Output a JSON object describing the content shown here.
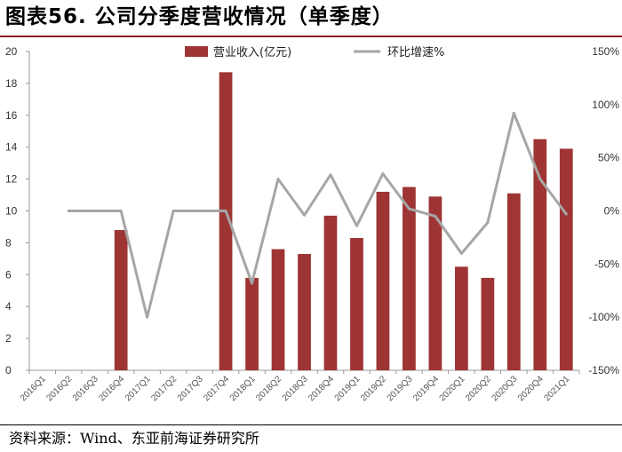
{
  "header": {
    "title": "图表56. 公司分季度营收情况（单季度）"
  },
  "footer": {
    "source": "资料来源：Wind、东亚前海证券研究所"
  },
  "chart_data": {
    "type": "bar",
    "categories": [
      "2016Q1",
      "2016Q2",
      "2016Q3",
      "2016Q4",
      "2017Q1",
      "2017Q2",
      "2017Q3",
      "2017Q4",
      "2018Q1",
      "2018Q2",
      "2018Q3",
      "2018Q4",
      "2019Q1",
      "2019Q2",
      "2019Q3",
      "2019Q4",
      "2020Q1",
      "2020Q2",
      "2020Q3",
      "2020Q4",
      "2021Q1"
    ],
    "series": [
      {
        "name": "营业收入(亿元)",
        "type": "bar",
        "axis": "left",
        "color": "#9e3434",
        "values": [
          null,
          null,
          null,
          8.8,
          null,
          null,
          null,
          18.7,
          5.8,
          7.6,
          7.3,
          9.7,
          8.3,
          11.2,
          11.5,
          10.9,
          6.5,
          5.8,
          11.1,
          14.5,
          13.9
        ]
      },
      {
        "name": "环比增速%",
        "type": "line",
        "axis": "right",
        "color": "#a6a6a6",
        "values": [
          null,
          0,
          0,
          0,
          -100,
          0,
          0,
          0,
          -68,
          30,
          -4,
          34,
          -14,
          35,
          2,
          -5,
          -40,
          -11,
          92,
          30,
          -3
        ]
      }
    ],
    "yAxisLeft": {
      "min": 0,
      "max": 20,
      "ticks": [
        0,
        2,
        4,
        6,
        8,
        10,
        12,
        14,
        16,
        18,
        20
      ]
    },
    "yAxisRight": {
      "min": -150,
      "max": 150,
      "ticks": [
        "-150%",
        "-100%",
        "-50%",
        "0%",
        "50%",
        "100%",
        "150%"
      ]
    },
    "legend": "top-center",
    "grid": false
  }
}
